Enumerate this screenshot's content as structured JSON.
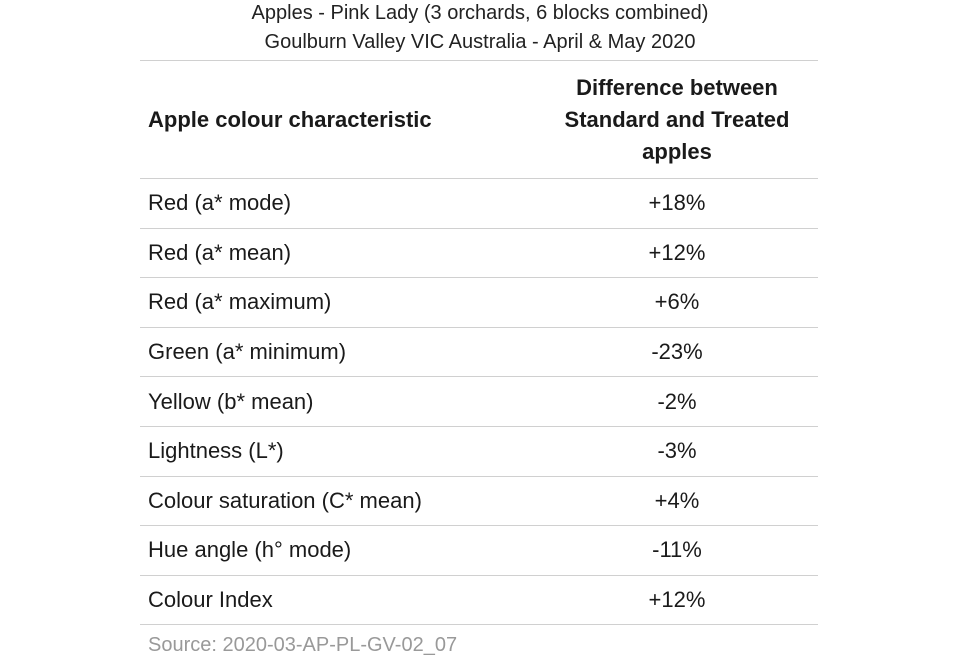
{
  "header": {
    "title": [
      "Apples - Pink Lady (3 orchards, 6 blocks combined)",
      "Goulburn Valley VIC Australia - April & May 2020"
    ]
  },
  "table": {
    "columns": [
      "Apple colour characteristic",
      "Difference between Standard and Treated apples"
    ],
    "rows": [
      [
        "Red (a* mode)",
        "+18%"
      ],
      [
        "Red (a* mean)",
        "+12%"
      ],
      [
        "Red (a* maximum)",
        "+6%"
      ],
      [
        "Green (a* minimum)",
        "-23%"
      ],
      [
        "Yellow (b* mean)",
        "-2%"
      ],
      [
        "Lightness (L*)",
        "-3%"
      ],
      [
        "Colour saturation (C* mean)",
        "+4%"
      ],
      [
        "Hue angle (h° mode)",
        "-11%"
      ],
      [
        "Colour Index",
        "+12%"
      ]
    ]
  },
  "source": "Source: 2020-03-AP-PL-GV-02_07"
}
